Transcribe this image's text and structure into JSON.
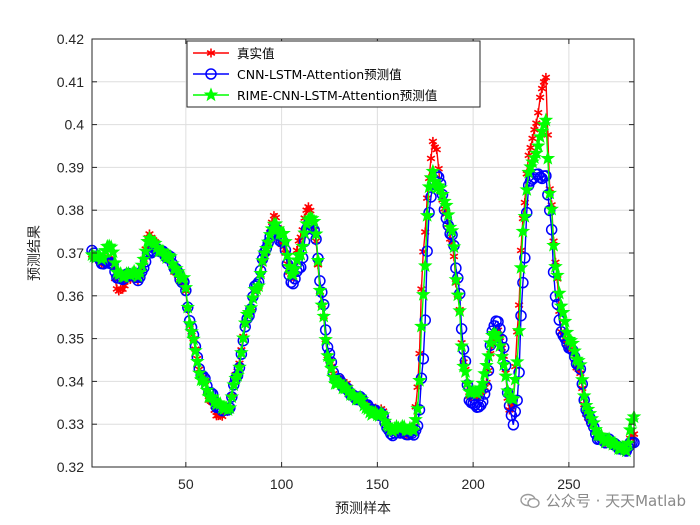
{
  "watermark": "公众号 · 天天Matlab",
  "chart_data": {
    "type": "line",
    "xlabel": "预测样本",
    "ylabel": "预测结果",
    "xlim": [
      1,
      284
    ],
    "ylim": [
      0.32,
      0.42
    ],
    "xticks": [
      50,
      100,
      150,
      200,
      250
    ],
    "yticks": [
      0.32,
      0.33,
      0.34,
      0.35,
      0.36,
      0.37,
      0.38,
      0.39,
      0.4,
      0.41,
      0.42
    ],
    "grid": true,
    "legend_position": "top-left",
    "series": [
      {
        "name": "真实值",
        "color": "#ff0000",
        "marker": "asterisk",
        "key": [
          [
            1,
            0.369
          ],
          [
            6,
            0.368
          ],
          [
            10,
            0.369
          ],
          [
            15,
            0.361
          ],
          [
            20,
            0.364
          ],
          [
            25,
            0.364
          ],
          [
            31,
            0.374
          ],
          [
            36,
            0.371
          ],
          [
            41,
            0.369
          ],
          [
            45,
            0.365
          ],
          [
            49,
            0.363
          ],
          [
            53,
            0.351
          ],
          [
            58,
            0.342
          ],
          [
            63,
            0.335
          ],
          [
            67,
            0.332
          ],
          [
            72,
            0.333
          ],
          [
            77,
            0.343
          ],
          [
            82,
            0.355
          ],
          [
            87,
            0.362
          ],
          [
            92,
            0.37
          ],
          [
            96,
            0.379
          ],
          [
            101,
            0.371
          ],
          [
            105,
            0.364
          ],
          [
            110,
            0.374
          ],
          [
            114,
            0.381
          ],
          [
            117,
            0.376
          ],
          [
            121,
            0.358
          ],
          [
            124,
            0.346
          ],
          [
            128,
            0.341
          ],
          [
            134,
            0.339
          ],
          [
            140,
            0.336
          ],
          [
            146,
            0.334
          ],
          [
            152,
            0.333
          ],
          [
            157,
            0.329
          ],
          [
            162,
            0.328
          ],
          [
            166,
            0.328
          ],
          [
            169,
            0.33
          ],
          [
            171,
            0.338
          ],
          [
            174,
            0.37
          ],
          [
            177,
            0.388
          ],
          [
            179,
            0.396
          ],
          [
            181,
            0.394
          ],
          [
            183,
            0.384
          ],
          [
            186,
            0.379
          ],
          [
            189,
            0.372
          ],
          [
            192,
            0.36
          ],
          [
            195,
            0.345
          ],
          [
            198,
            0.337
          ],
          [
            201,
            0.336
          ],
          [
            204,
            0.337
          ],
          [
            207,
            0.34
          ],
          [
            210,
            0.349
          ],
          [
            213,
            0.352
          ],
          [
            216,
            0.346
          ],
          [
            219,
            0.333
          ],
          [
            221,
            0.335
          ],
          [
            223,
            0.351
          ],
          [
            226,
            0.378
          ],
          [
            229,
            0.393
          ],
          [
            233,
            0.4
          ],
          [
            236,
            0.409
          ],
          [
            238,
            0.411
          ],
          [
            240,
            0.385
          ],
          [
            243,
            0.368
          ],
          [
            246,
            0.352
          ],
          [
            250,
            0.348
          ],
          [
            255,
            0.343
          ],
          [
            260,
            0.331
          ],
          [
            265,
            0.328
          ],
          [
            270,
            0.326
          ],
          [
            275,
            0.325
          ],
          [
            280,
            0.324
          ],
          [
            284,
            0.328
          ]
        ]
      },
      {
        "name": "CNN-LSTM-Attention预测值",
        "color": "#0000ff",
        "marker": "circle",
        "key": [
          [
            1,
            0.37
          ],
          [
            6,
            0.368
          ],
          [
            10,
            0.368
          ],
          [
            15,
            0.364
          ],
          [
            20,
            0.365
          ],
          [
            25,
            0.364
          ],
          [
            31,
            0.37
          ],
          [
            36,
            0.371
          ],
          [
            41,
            0.369
          ],
          [
            45,
            0.366
          ],
          [
            49,
            0.363
          ],
          [
            53,
            0.352
          ],
          [
            58,
            0.342
          ],
          [
            63,
            0.337
          ],
          [
            67,
            0.334
          ],
          [
            72,
            0.333
          ],
          [
            77,
            0.342
          ],
          [
            82,
            0.354
          ],
          [
            87,
            0.363
          ],
          [
            92,
            0.371
          ],
          [
            96,
            0.376
          ],
          [
            101,
            0.372
          ],
          [
            105,
            0.363
          ],
          [
            110,
            0.367
          ],
          [
            114,
            0.377
          ],
          [
            117,
            0.376
          ],
          [
            121,
            0.361
          ],
          [
            124,
            0.348
          ],
          [
            128,
            0.341
          ],
          [
            134,
            0.338
          ],
          [
            140,
            0.336
          ],
          [
            146,
            0.334
          ],
          [
            152,
            0.332
          ],
          [
            157,
            0.328
          ],
          [
            162,
            0.328
          ],
          [
            166,
            0.328
          ],
          [
            169,
            0.328
          ],
          [
            171,
            0.329
          ],
          [
            174,
            0.345
          ],
          [
            177,
            0.38
          ],
          [
            179,
            0.386
          ],
          [
            181,
            0.388
          ],
          [
            183,
            0.386
          ],
          [
            186,
            0.378
          ],
          [
            189,
            0.374
          ],
          [
            192,
            0.364
          ],
          [
            195,
            0.348
          ],
          [
            198,
            0.336
          ],
          [
            201,
            0.334
          ],
          [
            204,
            0.334
          ],
          [
            207,
            0.339
          ],
          [
            210,
            0.352
          ],
          [
            213,
            0.354
          ],
          [
            216,
            0.348
          ],
          [
            219,
            0.334
          ],
          [
            221,
            0.33
          ],
          [
            223,
            0.335
          ],
          [
            226,
            0.363
          ],
          [
            229,
            0.386
          ],
          [
            233,
            0.388
          ],
          [
            236,
            0.388
          ],
          [
            238,
            0.388
          ],
          [
            240,
            0.38
          ],
          [
            243,
            0.36
          ],
          [
            246,
            0.352
          ],
          [
            250,
            0.348
          ],
          [
            255,
            0.344
          ],
          [
            260,
            0.332
          ],
          [
            265,
            0.327
          ],
          [
            270,
            0.326
          ],
          [
            275,
            0.325
          ],
          [
            280,
            0.324
          ],
          [
            284,
            0.326
          ]
        ]
      },
      {
        "name": "RIME-CNN-LSTM-Attention预测值",
        "color": "#00ff00",
        "marker": "pentagram",
        "key": [
          [
            1,
            0.369
          ],
          [
            6,
            0.369
          ],
          [
            10,
            0.372
          ],
          [
            15,
            0.365
          ],
          [
            20,
            0.365
          ],
          [
            25,
            0.365
          ],
          [
            31,
            0.373
          ],
          [
            36,
            0.371
          ],
          [
            41,
            0.369
          ],
          [
            45,
            0.366
          ],
          [
            49,
            0.364
          ],
          [
            53,
            0.351
          ],
          [
            58,
            0.341
          ],
          [
            63,
            0.336
          ],
          [
            67,
            0.335
          ],
          [
            72,
            0.333
          ],
          [
            77,
            0.342
          ],
          [
            82,
            0.355
          ],
          [
            87,
            0.362
          ],
          [
            92,
            0.371
          ],
          [
            96,
            0.377
          ],
          [
            101,
            0.374
          ],
          [
            105,
            0.365
          ],
          [
            110,
            0.37
          ],
          [
            114,
            0.378
          ],
          [
            117,
            0.378
          ],
          [
            121,
            0.358
          ],
          [
            124,
            0.346
          ],
          [
            128,
            0.34
          ],
          [
            134,
            0.338
          ],
          [
            140,
            0.336
          ],
          [
            146,
            0.333
          ],
          [
            152,
            0.332
          ],
          [
            157,
            0.329
          ],
          [
            162,
            0.329
          ],
          [
            166,
            0.329
          ],
          [
            169,
            0.329
          ],
          [
            171,
            0.333
          ],
          [
            174,
            0.36
          ],
          [
            177,
            0.386
          ],
          [
            179,
            0.389
          ],
          [
            181,
            0.385
          ],
          [
            183,
            0.385
          ],
          [
            186,
            0.381
          ],
          [
            189,
            0.375
          ],
          [
            192,
            0.36
          ],
          [
            195,
            0.344
          ],
          [
            198,
            0.338
          ],
          [
            201,
            0.337
          ],
          [
            204,
            0.338
          ],
          [
            207,
            0.344
          ],
          [
            210,
            0.351
          ],
          [
            213,
            0.35
          ],
          [
            216,
            0.344
          ],
          [
            219,
            0.336
          ],
          [
            221,
            0.336
          ],
          [
            223,
            0.344
          ],
          [
            226,
            0.375
          ],
          [
            229,
            0.389
          ],
          [
            233,
            0.393
          ],
          [
            236,
            0.399
          ],
          [
            238,
            0.401
          ],
          [
            240,
            0.384
          ],
          [
            243,
            0.367
          ],
          [
            246,
            0.358
          ],
          [
            250,
            0.35
          ],
          [
            255,
            0.345
          ],
          [
            260,
            0.333
          ],
          [
            265,
            0.328
          ],
          [
            270,
            0.326
          ],
          [
            275,
            0.325
          ],
          [
            280,
            0.324
          ],
          [
            284,
            0.332
          ]
        ]
      }
    ]
  }
}
